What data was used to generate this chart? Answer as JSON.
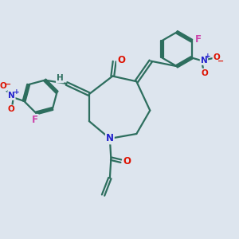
{
  "background_color": "#dde5ee",
  "bond_color": "#2d6e5e",
  "bond_width": 1.6,
  "atom_colors": {
    "O": "#dd1100",
    "N": "#2222cc",
    "F": "#cc44aa",
    "H": "#2d6e5e",
    "C": "#2d6e5e"
  },
  "font_size_atom": 8.5,
  "font_size_small": 7.5
}
